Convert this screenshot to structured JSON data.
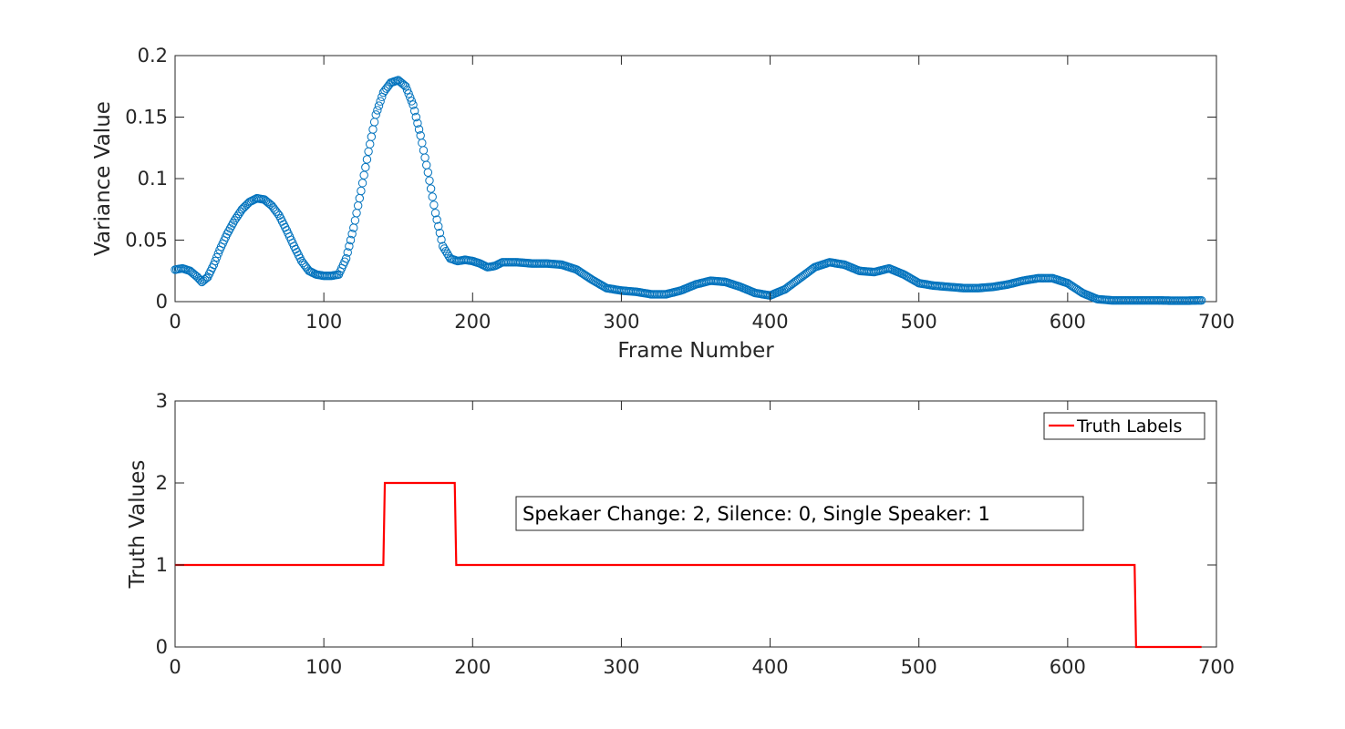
{
  "chart_data": [
    {
      "type": "scatter",
      "xlabel": "Frame Number",
      "ylabel": "Variance Value",
      "xlim": [
        0,
        700
      ],
      "ylim": [
        0,
        0.2
      ],
      "xticks": [
        "0",
        "100",
        "200",
        "300",
        "400",
        "500",
        "600",
        "700"
      ],
      "yticks": [
        "0",
        "0.05",
        "0.1",
        "0.15",
        "0.2"
      ],
      "grid": false,
      "marker": "open-circle",
      "color": "#0072BD",
      "series": [
        {
          "x": [
            0,
            5,
            10,
            15,
            18,
            22,
            26,
            30,
            35,
            40,
            45,
            50,
            55,
            60,
            65,
            70,
            75,
            80,
            85,
            90,
            95,
            100,
            105,
            110,
            115,
            120,
            125,
            130,
            135,
            140,
            145,
            150,
            155,
            160,
            165,
            170,
            175,
            180,
            185,
            190,
            195,
            200,
            205,
            210,
            215,
            220,
            225,
            230,
            240,
            250,
            260,
            270,
            280,
            290,
            300,
            310,
            320,
            330,
            340,
            350,
            360,
            370,
            380,
            390,
            400,
            410,
            420,
            430,
            440,
            450,
            460,
            470,
            480,
            490,
            500,
            510,
            520,
            530,
            540,
            550,
            560,
            570,
            580,
            590,
            600,
            610,
            620,
            630,
            640,
            650,
            660,
            670,
            680,
            690
          ],
          "y": [
            0.026,
            0.027,
            0.025,
            0.02,
            0.016,
            0.02,
            0.03,
            0.042,
            0.055,
            0.066,
            0.075,
            0.081,
            0.084,
            0.083,
            0.078,
            0.07,
            0.058,
            0.045,
            0.033,
            0.025,
            0.022,
            0.021,
            0.021,
            0.022,
            0.035,
            0.06,
            0.09,
            0.122,
            0.152,
            0.17,
            0.178,
            0.18,
            0.175,
            0.16,
            0.135,
            0.105,
            0.072,
            0.045,
            0.035,
            0.033,
            0.034,
            0.033,
            0.031,
            0.028,
            0.029,
            0.032,
            0.032,
            0.032,
            0.031,
            0.031,
            0.03,
            0.026,
            0.018,
            0.011,
            0.009,
            0.008,
            0.006,
            0.006,
            0.009,
            0.014,
            0.017,
            0.016,
            0.012,
            0.007,
            0.005,
            0.01,
            0.019,
            0.028,
            0.032,
            0.03,
            0.025,
            0.024,
            0.027,
            0.022,
            0.015,
            0.013,
            0.012,
            0.011,
            0.011,
            0.012,
            0.014,
            0.017,
            0.019,
            0.019,
            0.015,
            0.007,
            0.002,
            0.001,
            0.001,
            0.001,
            0.001,
            0.0008,
            0.0008,
            0.001
          ]
        }
      ]
    },
    {
      "type": "line",
      "xlabel": "",
      "ylabel": "Truth Values",
      "xlim": [
        0,
        700
      ],
      "ylim": [
        0,
        3
      ],
      "xticks": [
        "0",
        "100",
        "200",
        "300",
        "400",
        "500",
        "600",
        "700"
      ],
      "yticks": [
        "0",
        "1",
        "2",
        "3"
      ],
      "grid": false,
      "legend_position": "top-right",
      "annotation": "Spekaer Change: 2, Silence: 0, Single Speaker: 1",
      "series": [
        {
          "name": "Truth Labels",
          "color": "#FF0000",
          "x": [
            0,
            140,
            141,
            188,
            189,
            645,
            646,
            690
          ],
          "y": [
            1,
            1,
            2,
            2,
            1,
            1,
            0,
            0
          ]
        }
      ]
    }
  ]
}
